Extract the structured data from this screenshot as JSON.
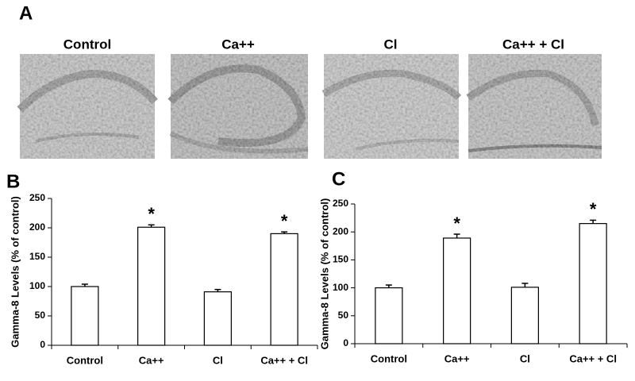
{
  "panel_a": {
    "label": "A",
    "images": [
      "Control",
      "Ca++",
      "Cl",
      "Ca++ + Cl"
    ]
  },
  "chart_data": [
    {
      "type": "bar",
      "panel": "B",
      "ylabel": "Gamma-8 Levels (% of control)",
      "categories": [
        "Control",
        "Ca++",
        "Cl",
        "Ca++ + Cl"
      ],
      "values": [
        100,
        201,
        91,
        190
      ],
      "errors": [
        4,
        4,
        4,
        3
      ],
      "markers": [
        null,
        "*",
        null,
        "*"
      ],
      "color": "#ffffff",
      "ylim": [
        0,
        250
      ],
      "yticks": [
        0,
        50,
        100,
        150,
        200,
        250
      ]
    },
    {
      "type": "bar",
      "panel": "C",
      "ylabel": "Gamma-8 Levels (% of control)",
      "categories": [
        "Control",
        "Ca++",
        "Cl",
        "Ca++ + Cl"
      ],
      "values": [
        100,
        189,
        101,
        215
      ],
      "errors": [
        5,
        7,
        7,
        6
      ],
      "markers": [
        null,
        "*",
        null,
        "*"
      ],
      "color": "#ffffff",
      "ylim": [
        0,
        250
      ],
      "yticks": [
        0,
        50,
        100,
        150,
        200,
        250
      ]
    }
  ]
}
